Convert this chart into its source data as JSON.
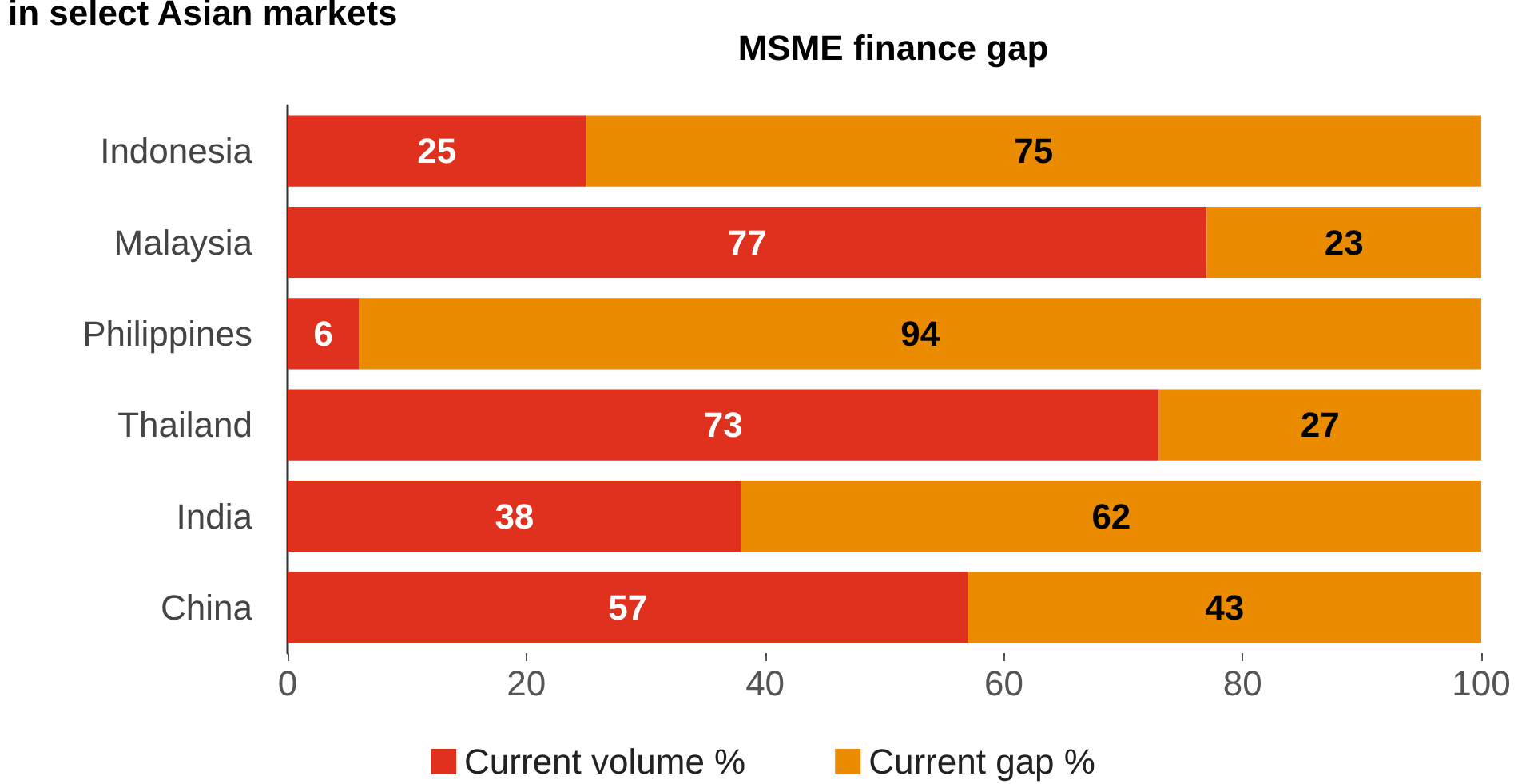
{
  "chart_data": {
    "type": "bar",
    "orientation": "horizontal",
    "stacked": true,
    "title": "in select Asian markets",
    "subtitle": "MSME finance gap",
    "categories": [
      "Indonesia",
      "Malaysia",
      "Philippines",
      "Thailand",
      "India",
      "China"
    ],
    "series": [
      {
        "name": "Current volume %",
        "color": "#e0301e",
        "values": [
          25,
          77,
          6,
          73,
          38,
          57
        ]
      },
      {
        "name": "Current gap %",
        "color": "#eb8c00",
        "values": [
          75,
          23,
          94,
          27,
          62,
          43
        ]
      }
    ],
    "xlim": [
      0,
      100
    ],
    "xticks": [
      0,
      20,
      40,
      60,
      80,
      100
    ],
    "grid": false,
    "legend": "bottom",
    "data_labels": true
  }
}
